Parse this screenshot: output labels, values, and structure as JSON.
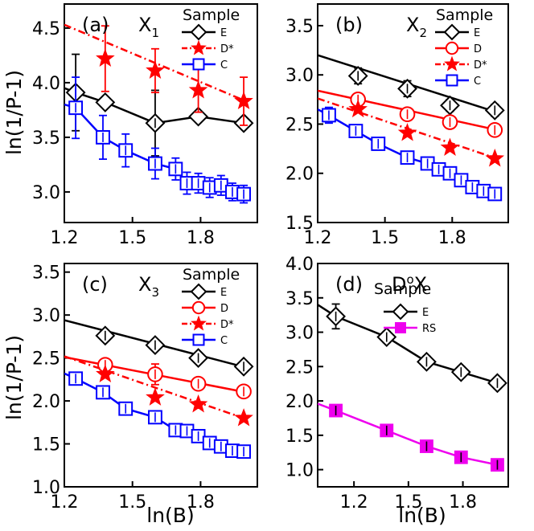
{
  "figure": {
    "x_label": "ln(B)",
    "y_label": "ln(1/P-1)"
  },
  "chart_data": [
    {
      "type": "line",
      "tag": "(a)",
      "title_main": "X",
      "title_sub": "1",
      "title_sup": "",
      "xlim": [
        1.2,
        2.05
      ],
      "ylim": [
        2.72,
        4.72
      ],
      "xticks": [
        1.2,
        1.5,
        1.8
      ],
      "xtick_labels": [
        "1.2",
        "1.5",
        "1.8"
      ],
      "yticks": [
        3.0,
        3.5,
        4.0,
        4.5
      ],
      "ytick_labels": [
        "3.0",
        "3.5",
        "4.0",
        "4.5"
      ],
      "legend_title": "Sample",
      "series": [
        {
          "name": "E",
          "color": "#000000",
          "marker": "diamond",
          "dash": "solid",
          "x": [
            1.25,
            1.38,
            1.6,
            1.79,
            1.99
          ],
          "y": [
            3.91,
            3.82,
            3.63,
            3.69,
            3.63
          ],
          "err": [
            0.35,
            0.0,
            0.3,
            0.0,
            0.0
          ],
          "fit": [
            [
              1.2,
              3.95
            ],
            [
              1.25,
              3.91
            ],
            [
              1.38,
              3.82
            ],
            [
              1.6,
              3.63
            ],
            [
              1.79,
              3.69
            ],
            [
              1.99,
              3.63
            ]
          ]
        },
        {
          "name": "D*",
          "color": "#ff0000",
          "marker": "star",
          "dash": "dashdot",
          "x": [
            1.38,
            1.6,
            1.79,
            1.99
          ],
          "y": [
            4.22,
            4.11,
            3.93,
            3.83
          ],
          "err": [
            0.3,
            0.2,
            0.2,
            0.22
          ],
          "fit": [
            [
              1.2,
              4.53
            ],
            [
              2.0,
              3.83
            ]
          ]
        },
        {
          "name": "C",
          "color": "#0000ff",
          "marker": "square",
          "dash": "solid",
          "x": [
            1.25,
            1.37,
            1.47,
            1.6,
            1.69,
            1.74,
            1.79,
            1.84,
            1.89,
            1.94,
            1.99
          ],
          "y": [
            3.77,
            3.5,
            3.38,
            3.26,
            3.21,
            3.08,
            3.08,
            3.04,
            3.06,
            3.0,
            2.98
          ],
          "err": [
            0.28,
            0.2,
            0.15,
            0.14,
            0.1,
            0.1,
            0.09,
            0.09,
            0.09,
            0.08,
            0.08
          ],
          "fit": [
            [
              1.2,
              3.8
            ],
            [
              1.25,
              3.77
            ],
            [
              1.37,
              3.5
            ],
            [
              1.47,
              3.38
            ],
            [
              1.6,
              3.26
            ],
            [
              1.69,
              3.21
            ],
            [
              1.74,
              3.08
            ],
            [
              1.79,
              3.08
            ],
            [
              1.84,
              3.04
            ],
            [
              1.89,
              3.06
            ],
            [
              1.94,
              3.0
            ],
            [
              1.99,
              2.98
            ]
          ]
        }
      ]
    },
    {
      "type": "line",
      "tag": "(b)",
      "title_main": "X",
      "title_sub": "2",
      "title_sup": "",
      "xlim": [
        1.2,
        2.05
      ],
      "ylim": [
        1.5,
        3.72
      ],
      "xticks": [
        1.2,
        1.5,
        1.8
      ],
      "xtick_labels": [
        "1.2",
        "1.5",
        "1.8"
      ],
      "yticks": [
        1.5,
        2.0,
        2.5,
        3.0,
        3.5
      ],
      "ytick_labels": [
        "1.5",
        "2.0",
        "2.5",
        "3.0",
        "3.5"
      ],
      "legend_title": "Sample",
      "series": [
        {
          "name": "E",
          "color": "#000000",
          "marker": "diamond",
          "dash": "solid",
          "x": [
            1.38,
            1.6,
            1.79,
            1.99
          ],
          "y": [
            2.99,
            2.86,
            2.69,
            2.64
          ],
          "err": [
            0.08,
            0.08,
            0.06,
            0.06
          ],
          "fit": [
            [
              1.2,
              3.2
            ],
            [
              2.0,
              2.62
            ]
          ]
        },
        {
          "name": "D",
          "color": "#ff0000",
          "marker": "circle",
          "dash": "solid",
          "x": [
            1.38,
            1.6,
            1.79,
            1.99
          ],
          "y": [
            2.75,
            2.6,
            2.52,
            2.44
          ],
          "err": [
            0.06,
            0.06,
            0.06,
            0.06
          ],
          "fit": [
            [
              1.2,
              2.84
            ],
            [
              2.0,
              2.44
            ]
          ]
        },
        {
          "name": "D*",
          "color": "#ff0000",
          "marker": "star",
          "dash": "dashdot",
          "x": [
            1.38,
            1.6,
            1.79,
            1.99
          ],
          "y": [
            2.65,
            2.41,
            2.26,
            2.15
          ],
          "err": [
            0.0,
            0.0,
            0.0,
            0.0
          ],
          "fit": [
            [
              1.2,
              2.76
            ],
            [
              2.0,
              2.15
            ]
          ]
        },
        {
          "name": "C",
          "color": "#0000ff",
          "marker": "square",
          "dash": "solid",
          "x": [
            1.25,
            1.37,
            1.47,
            1.6,
            1.69,
            1.74,
            1.79,
            1.84,
            1.89,
            1.94,
            1.99
          ],
          "y": [
            2.59,
            2.43,
            2.3,
            2.16,
            2.1,
            2.04,
            2.0,
            1.93,
            1.86,
            1.82,
            1.79
          ],
          "err": [
            0.08,
            0.05,
            0.05,
            0.05,
            0.04,
            0.04,
            0.04,
            0.04,
            0.04,
            0.04,
            0.04
          ],
          "fit": [
            [
              1.2,
              2.65
            ],
            [
              1.25,
              2.59
            ],
            [
              1.37,
              2.43
            ],
            [
              1.47,
              2.3
            ],
            [
              1.6,
              2.16
            ],
            [
              1.69,
              2.1
            ],
            [
              1.74,
              2.04
            ],
            [
              1.79,
              2.0
            ],
            [
              1.84,
              1.93
            ],
            [
              1.89,
              1.86
            ],
            [
              1.94,
              1.82
            ],
            [
              1.99,
              1.79
            ]
          ]
        }
      ]
    },
    {
      "type": "line",
      "tag": "(c)",
      "title_main": "X",
      "title_sub": "3",
      "title_sup": "",
      "xlim": [
        1.2,
        2.05
      ],
      "ylim": [
        1.0,
        3.6
      ],
      "xticks": [
        1.2,
        1.5,
        1.8
      ],
      "xtick_labels": [
        "1.2",
        "1.5",
        "1.8"
      ],
      "yticks": [
        1.0,
        1.5,
        2.0,
        2.5,
        3.0,
        3.5
      ],
      "ytick_labels": [
        "1.0",
        "1.5",
        "2.0",
        "2.5",
        "3.0",
        "3.5"
      ],
      "legend_title": "Sample",
      "series": [
        {
          "name": "E",
          "color": "#000000",
          "marker": "diamond",
          "dash": "solid",
          "x": [
            1.38,
            1.6,
            1.79,
            1.99
          ],
          "y": [
            2.76,
            2.65,
            2.5,
            2.4
          ],
          "err": [
            0.06,
            0.06,
            0.06,
            0.06
          ],
          "fit": [
            [
              1.2,
              2.94
            ],
            [
              2.0,
              2.39
            ]
          ]
        },
        {
          "name": "D",
          "color": "#ff0000",
          "marker": "circle",
          "dash": "solid",
          "x": [
            1.38,
            1.6,
            1.79,
            1.99
          ],
          "y": [
            2.42,
            2.31,
            2.2,
            2.11
          ],
          "err": [
            0.06,
            0.12,
            0.06,
            0.06
          ],
          "fit": [
            [
              1.2,
              2.51
            ],
            [
              2.0,
              2.1
            ]
          ]
        },
        {
          "name": "D*",
          "color": "#ff0000",
          "marker": "star",
          "dash": "dashdot",
          "x": [
            1.38,
            1.6,
            1.79,
            1.99
          ],
          "y": [
            2.31,
            2.04,
            1.96,
            1.8
          ],
          "err": [
            0.0,
            0.0,
            0.0,
            0.0
          ],
          "fit": [
            [
              1.2,
              2.52
            ],
            [
              2.0,
              1.79
            ]
          ]
        },
        {
          "name": "C",
          "color": "#0000ff",
          "marker": "square",
          "dash": "solid",
          "x": [
            1.25,
            1.37,
            1.47,
            1.6,
            1.69,
            1.74,
            1.79,
            1.84,
            1.89,
            1.94,
            1.99
          ],
          "y": [
            2.26,
            2.1,
            1.91,
            1.81,
            1.66,
            1.65,
            1.59,
            1.51,
            1.47,
            1.42,
            1.41
          ],
          "err": [
            0.07,
            0.05,
            0.05,
            0.05,
            0.05,
            0.05,
            0.05,
            0.05,
            0.05,
            0.05,
            0.05
          ],
          "fit": [
            [
              1.2,
              2.32
            ],
            [
              1.25,
              2.26
            ],
            [
              1.37,
              2.1
            ],
            [
              1.47,
              1.91
            ],
            [
              1.6,
              1.81
            ],
            [
              1.69,
              1.66
            ],
            [
              1.74,
              1.65
            ],
            [
              1.79,
              1.59
            ],
            [
              1.84,
              1.51
            ],
            [
              1.89,
              1.47
            ],
            [
              1.94,
              1.42
            ],
            [
              1.99,
              1.41
            ]
          ]
        }
      ]
    },
    {
      "type": "line",
      "tag": "(d)",
      "title_main": "D",
      "title_sub": "",
      "title_sup": "o",
      "title_tail": "X",
      "xlim": [
        1.0,
        2.05
      ],
      "ylim": [
        0.75,
        4.0
      ],
      "xticks": [
        1.2,
        1.5,
        1.8
      ],
      "xtick_labels": [
        "1.2",
        "1.5",
        "1.8"
      ],
      "yticks": [
        1.0,
        1.5,
        2.0,
        2.5,
        3.0,
        3.5,
        4.0
      ],
      "ytick_labels": [
        "1.0",
        "1.5",
        "2.0",
        "2.5",
        "3.0",
        "3.5",
        "4.0"
      ],
      "legend_title": "Sample",
      "series": [
        {
          "name": "E",
          "color": "#000000",
          "marker": "diamond",
          "dash": "solid",
          "x": [
            1.1,
            1.38,
            1.6,
            1.79,
            1.99
          ],
          "y": [
            3.23,
            2.93,
            2.57,
            2.42,
            2.26
          ],
          "err": [
            0.18,
            0.08,
            0.08,
            0.08,
            0.08
          ],
          "fit": [
            [
              1.0,
              3.4
            ],
            [
              1.1,
              3.23
            ],
            [
              1.38,
              2.93
            ],
            [
              1.6,
              2.57
            ],
            [
              1.79,
              2.42
            ],
            [
              1.99,
              2.26
            ]
          ]
        },
        {
          "name": "RS",
          "color": "#ee00ee",
          "marker": "square-filled",
          "dash": "solid",
          "x": [
            1.1,
            1.38,
            1.6,
            1.79,
            1.99
          ],
          "y": [
            1.86,
            1.57,
            1.34,
            1.18,
            1.07
          ],
          "err": [
            0.08,
            0.08,
            0.08,
            0.08,
            0.08
          ],
          "fit": [
            [
              1.0,
              1.96
            ],
            [
              1.1,
              1.86
            ],
            [
              1.38,
              1.57
            ],
            [
              1.6,
              1.34
            ],
            [
              1.79,
              1.18
            ],
            [
              1.99,
              1.07
            ]
          ]
        }
      ]
    }
  ]
}
